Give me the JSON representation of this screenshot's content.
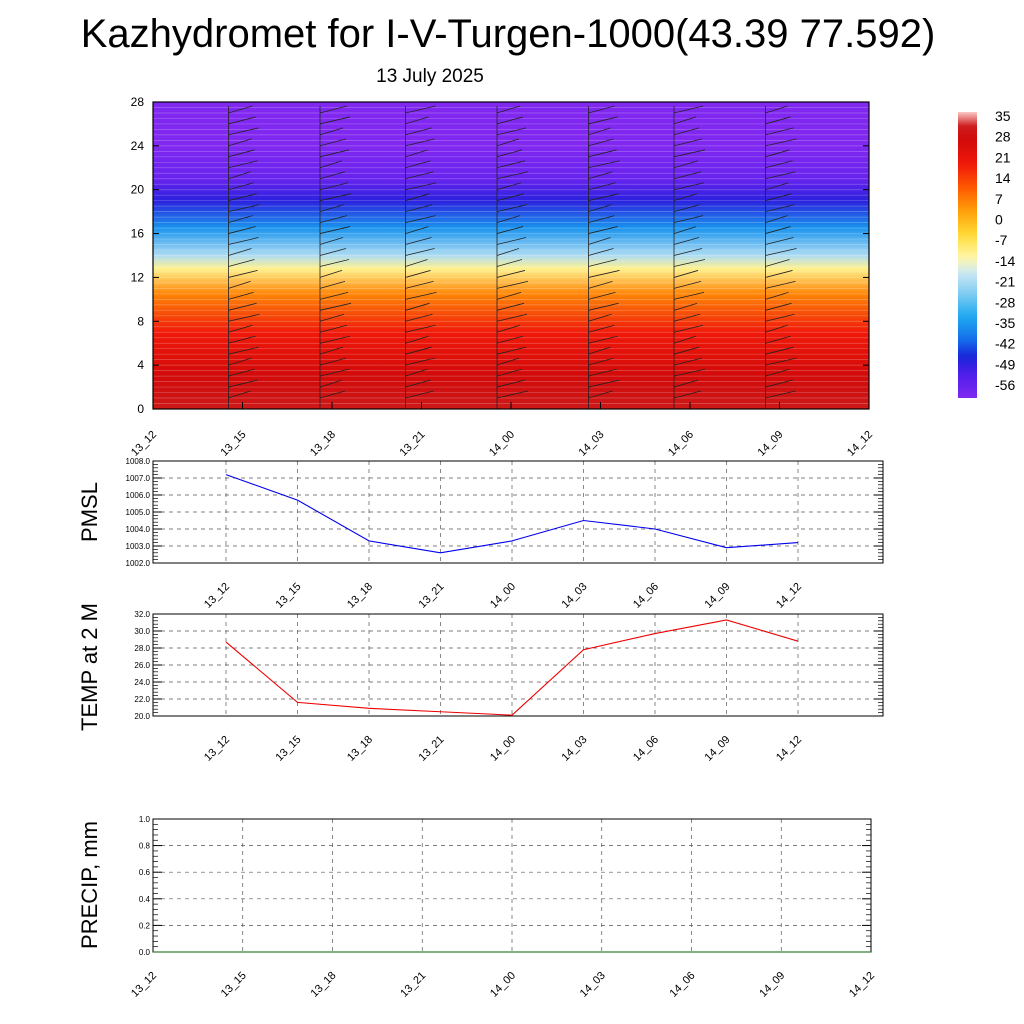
{
  "title": "Kazhydromet for I-V-Turgen-1000(43.39 77.592)",
  "subtitle": "13 July 2025",
  "colors": {
    "pmsl_line": "#0000ee",
    "temp_line": "#ee0000",
    "precip_line": "#006400",
    "grid": "#000000"
  },
  "chart_data": [
    {
      "type": "heatmap",
      "title": "",
      "x": [
        "13_12",
        "13_15",
        "13_18",
        "13_21",
        "14_00",
        "14_03",
        "14_06",
        "14_09",
        "14_12"
      ],
      "ylabel": "",
      "ylim": [
        0,
        28
      ],
      "yticks": [
        0,
        4,
        8,
        12,
        16,
        20,
        24,
        28
      ],
      "colorbar": {
        "labels": [
          "35",
          "28",
          "21",
          "14",
          "7",
          "0",
          "-7",
          "-14",
          "-21",
          "-28",
          "-35",
          "-42",
          "-49",
          "-56"
        ],
        "range": [
          -60,
          38
        ]
      },
      "temperature_profile": [
        {
          "level": 0,
          "value": 33
        },
        {
          "level": 3,
          "value": 28
        },
        {
          "level": 7,
          "value": 20
        },
        {
          "level": 10.5,
          "value": 7
        },
        {
          "level": 12.8,
          "value": -10
        },
        {
          "level": 14,
          "value": -20
        },
        {
          "level": 16.5,
          "value": -35
        },
        {
          "level": 19,
          "value": -48
        },
        {
          "level": 21,
          "value": -56
        },
        {
          "level": 24,
          "value": -60
        },
        {
          "level": 28,
          "value": -60
        }
      ]
    },
    {
      "type": "line",
      "ylabel": "PMSL",
      "ylim": [
        1002.0,
        1008.0
      ],
      "yticks": [
        "1002.0",
        "1003.0",
        "1004.0",
        "1005.0",
        "1006.0",
        "1007.0",
        "1008.0"
      ],
      "categories": [
        "13_12",
        "13_15",
        "13_18",
        "13_21",
        "14_00",
        "14_03",
        "14_06",
        "14_09",
        "14_12"
      ],
      "values": [
        1007.2,
        1005.7,
        1003.3,
        1002.6,
        1003.3,
        1004.5,
        1004.0,
        1002.9,
        1003.2
      ],
      "grid": true
    },
    {
      "type": "line",
      "ylabel": "TEMP at 2 M",
      "ylim": [
        20.0,
        32.0
      ],
      "yticks": [
        "20.0",
        "22.0",
        "24.0",
        "26.0",
        "28.0",
        "30.0",
        "32.0"
      ],
      "categories": [
        "13_12",
        "13_15",
        "13_18",
        "13_21",
        "14_00",
        "14_03",
        "14_06",
        "14_09",
        "14_12"
      ],
      "values": [
        28.7,
        21.6,
        20.9,
        20.5,
        20.1,
        27.8,
        29.7,
        31.3,
        28.8
      ],
      "grid": true
    },
    {
      "type": "line",
      "ylabel": "PRECIP, mm",
      "ylim": [
        0.0,
        1.0
      ],
      "yticks": [
        "0.0",
        "0.2",
        "0.4",
        "0.6",
        "0.8",
        "1.0"
      ],
      "categories": [
        "13_12",
        "13_15",
        "13_18",
        "13_21",
        "14_00",
        "14_03",
        "14_06",
        "14_09",
        "14_12"
      ],
      "values": [
        0,
        0,
        0,
        0,
        0,
        0,
        0,
        0,
        0
      ],
      "grid": true
    }
  ]
}
